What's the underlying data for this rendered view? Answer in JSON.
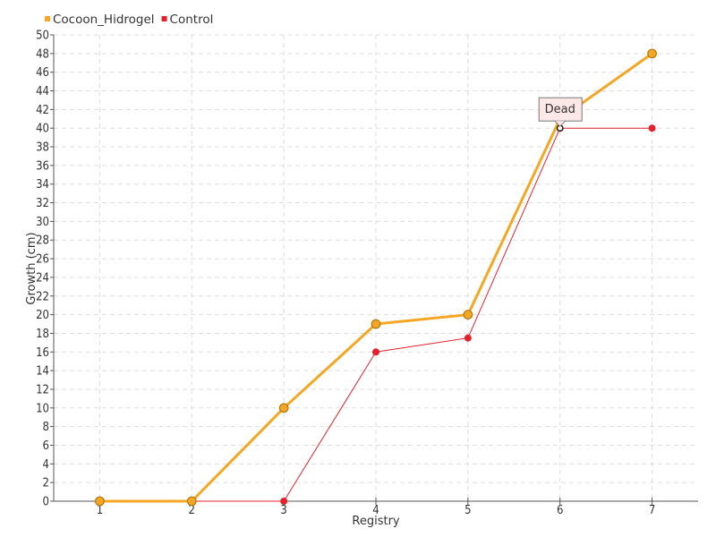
{
  "chart_data": {
    "type": "line",
    "xlabel": "Registry",
    "ylabel": "Growth (cm)",
    "categories": [
      "1",
      "2",
      "3",
      "4",
      "5",
      "6",
      "7"
    ],
    "x": [
      1,
      2,
      3,
      4,
      5,
      6,
      7
    ],
    "xlim": [
      0.5,
      7.5
    ],
    "ylim": [
      0,
      50
    ],
    "ytick_step": 2,
    "grid": true,
    "legend": "top-left",
    "series": [
      {
        "name": "Cocoon_Hidrogel",
        "color": "#f5a623",
        "values": [
          0,
          0,
          10,
          19,
          20,
          41,
          48
        ]
      },
      {
        "name": "Control",
        "color": "#e3222c",
        "values": [
          0,
          0,
          0,
          16,
          17.5,
          40,
          40
        ]
      }
    ],
    "annotations": [
      {
        "text": "Dead",
        "x": 6,
        "y": 40
      }
    ]
  }
}
